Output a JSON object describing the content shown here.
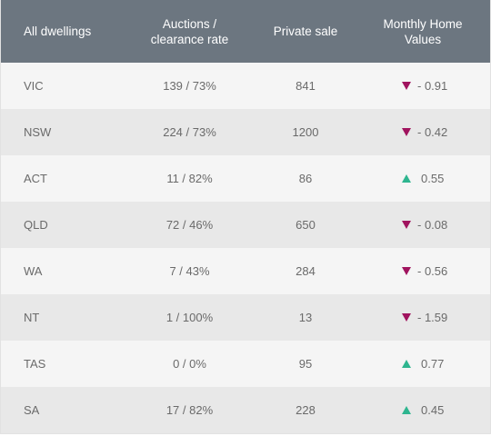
{
  "header": {
    "col0": "All dwellings",
    "col1_line1": "Auctions /",
    "col1_line2": "clearance rate",
    "col2": "Private sale",
    "col3_line1": "Monthly Home",
    "col3_line2": "Values"
  },
  "colors": {
    "header_bg": "#6c7680",
    "down": "#a0135e",
    "up": "#2eb58f"
  },
  "rows": [
    {
      "region": "VIC",
      "auctions": "139 / 73%",
      "private_sale": "841",
      "direction": "down",
      "change": "- 0.91"
    },
    {
      "region": "NSW",
      "auctions": "224 / 73%",
      "private_sale": "1200",
      "direction": "down",
      "change": "- 0.42"
    },
    {
      "region": "ACT",
      "auctions": "11 / 82%",
      "private_sale": "86",
      "direction": "up",
      "change": "0.55"
    },
    {
      "region": "QLD",
      "auctions": "72 / 46%",
      "private_sale": "650",
      "direction": "down",
      "change": "- 0.08"
    },
    {
      "region": "WA",
      "auctions": "7 / 43%",
      "private_sale": "284",
      "direction": "down",
      "change": "- 0.56"
    },
    {
      "region": "NT",
      "auctions": "1 / 100%",
      "private_sale": "13",
      "direction": "down",
      "change": "- 1.59"
    },
    {
      "region": "TAS",
      "auctions": "0 / 0%",
      "private_sale": "95",
      "direction": "up",
      "change": "0.77"
    },
    {
      "region": "SA",
      "auctions": "17 / 82%",
      "private_sale": "228",
      "direction": "up",
      "change": "0.45"
    }
  ]
}
